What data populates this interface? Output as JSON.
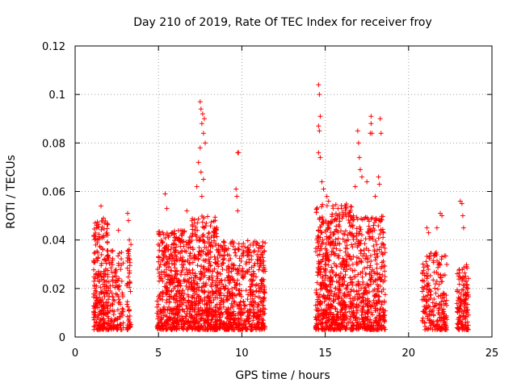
{
  "chart_data": {
    "type": "scatter",
    "title": "Day 210 of 2019, Rate Of TEC Index for receiver froy",
    "xlabel": "GPS time / hours",
    "ylabel": "ROTI / TECUs",
    "xlim": [
      0,
      25
    ],
    "ylim": [
      0,
      0.12
    ],
    "grid": true,
    "marker": "+",
    "color": "#ff0000",
    "x_ticks": [
      0,
      5,
      10,
      15,
      20,
      25
    ],
    "x_tick_labels": [
      "0",
      "5",
      "10",
      "15",
      "20",
      "25"
    ],
    "y_ticks": [
      0,
      0.02,
      0.04,
      0.06,
      0.08,
      0.1,
      0.12
    ],
    "y_tick_labels": [
      "0",
      "0.02",
      "0.04",
      "0.06",
      "0.08",
      "0.1",
      "0.12"
    ],
    "clusters": [
      {
        "x_range": [
          1.1,
          2.0
        ],
        "density": 240,
        "ymax": 0.048
      },
      {
        "x_range": [
          1.9,
          2.9
        ],
        "density": 140,
        "ymax": 0.036
      },
      {
        "x_range": [
          3.1,
          3.35
        ],
        "density": 50,
        "ymax": 0.04
      },
      {
        "x_range": [
          4.9,
          7.0
        ],
        "density": 520,
        "ymax": 0.044
      },
      {
        "x_range": [
          7.0,
          8.5
        ],
        "density": 420,
        "ymax": 0.05
      },
      {
        "x_range": [
          8.5,
          11.4
        ],
        "density": 620,
        "ymax": 0.04
      },
      {
        "x_range": [
          14.4,
          16.6
        ],
        "density": 620,
        "ymax": 0.055
      },
      {
        "x_range": [
          16.6,
          18.6
        ],
        "density": 460,
        "ymax": 0.05
      },
      {
        "x_range": [
          20.8,
          22.3
        ],
        "density": 220,
        "ymax": 0.035
      },
      {
        "x_range": [
          22.9,
          23.6
        ],
        "density": 140,
        "ymax": 0.03
      }
    ],
    "peaks": [
      {
        "x": 1.2,
        "y": 0.047
      },
      {
        "x": 1.3,
        "y": 0.045
      },
      {
        "x": 1.55,
        "y": 0.054
      },
      {
        "x": 1.7,
        "y": 0.049
      },
      {
        "x": 1.75,
        "y": 0.047
      },
      {
        "x": 2.6,
        "y": 0.044
      },
      {
        "x": 3.15,
        "y": 0.051
      },
      {
        "x": 3.2,
        "y": 0.048
      },
      {
        "x": 3.25,
        "y": 0.04
      },
      {
        "x": 5.4,
        "y": 0.059
      },
      {
        "x": 5.5,
        "y": 0.053
      },
      {
        "x": 6.7,
        "y": 0.052
      },
      {
        "x": 7.3,
        "y": 0.062
      },
      {
        "x": 7.4,
        "y": 0.072
      },
      {
        "x": 7.5,
        "y": 0.078
      },
      {
        "x": 7.5,
        "y": 0.097
      },
      {
        "x": 7.55,
        "y": 0.094
      },
      {
        "x": 7.6,
        "y": 0.088
      },
      {
        "x": 7.65,
        "y": 0.092
      },
      {
        "x": 7.7,
        "y": 0.084
      },
      {
        "x": 7.75,
        "y": 0.09
      },
      {
        "x": 7.8,
        "y": 0.08
      },
      {
        "x": 7.55,
        "y": 0.068
      },
      {
        "x": 7.7,
        "y": 0.065
      },
      {
        "x": 7.6,
        "y": 0.058
      },
      {
        "x": 9.75,
        "y": 0.076
      },
      {
        "x": 9.8,
        "y": 0.076
      },
      {
        "x": 9.65,
        "y": 0.061
      },
      {
        "x": 9.7,
        "y": 0.058
      },
      {
        "x": 9.75,
        "y": 0.052
      },
      {
        "x": 14.6,
        "y": 0.104
      },
      {
        "x": 14.65,
        "y": 0.1
      },
      {
        "x": 14.7,
        "y": 0.091
      },
      {
        "x": 14.6,
        "y": 0.087
      },
      {
        "x": 14.65,
        "y": 0.085
      },
      {
        "x": 14.6,
        "y": 0.076
      },
      {
        "x": 14.7,
        "y": 0.074
      },
      {
        "x": 14.8,
        "y": 0.064
      },
      {
        "x": 14.9,
        "y": 0.061
      },
      {
        "x": 15.1,
        "y": 0.058
      },
      {
        "x": 15.2,
        "y": 0.056
      },
      {
        "x": 16.8,
        "y": 0.062
      },
      {
        "x": 16.95,
        "y": 0.085
      },
      {
        "x": 17.0,
        "y": 0.08
      },
      {
        "x": 17.05,
        "y": 0.074
      },
      {
        "x": 17.1,
        "y": 0.069
      },
      {
        "x": 17.2,
        "y": 0.066
      },
      {
        "x": 17.75,
        "y": 0.091
      },
      {
        "x": 17.7,
        "y": 0.084
      },
      {
        "x": 17.8,
        "y": 0.084
      },
      {
        "x": 17.75,
        "y": 0.088
      },
      {
        "x": 17.5,
        "y": 0.064
      },
      {
        "x": 18.2,
        "y": 0.066
      },
      {
        "x": 18.25,
        "y": 0.063
      },
      {
        "x": 18.3,
        "y": 0.09
      },
      {
        "x": 18.35,
        "y": 0.084
      },
      {
        "x": 18.0,
        "y": 0.058
      },
      {
        "x": 21.1,
        "y": 0.045
      },
      {
        "x": 21.2,
        "y": 0.043
      },
      {
        "x": 21.7,
        "y": 0.045
      },
      {
        "x": 21.9,
        "y": 0.051
      },
      {
        "x": 22.0,
        "y": 0.05
      },
      {
        "x": 23.1,
        "y": 0.056
      },
      {
        "x": 23.2,
        "y": 0.055
      },
      {
        "x": 23.25,
        "y": 0.05
      },
      {
        "x": 23.3,
        "y": 0.045
      }
    ]
  }
}
